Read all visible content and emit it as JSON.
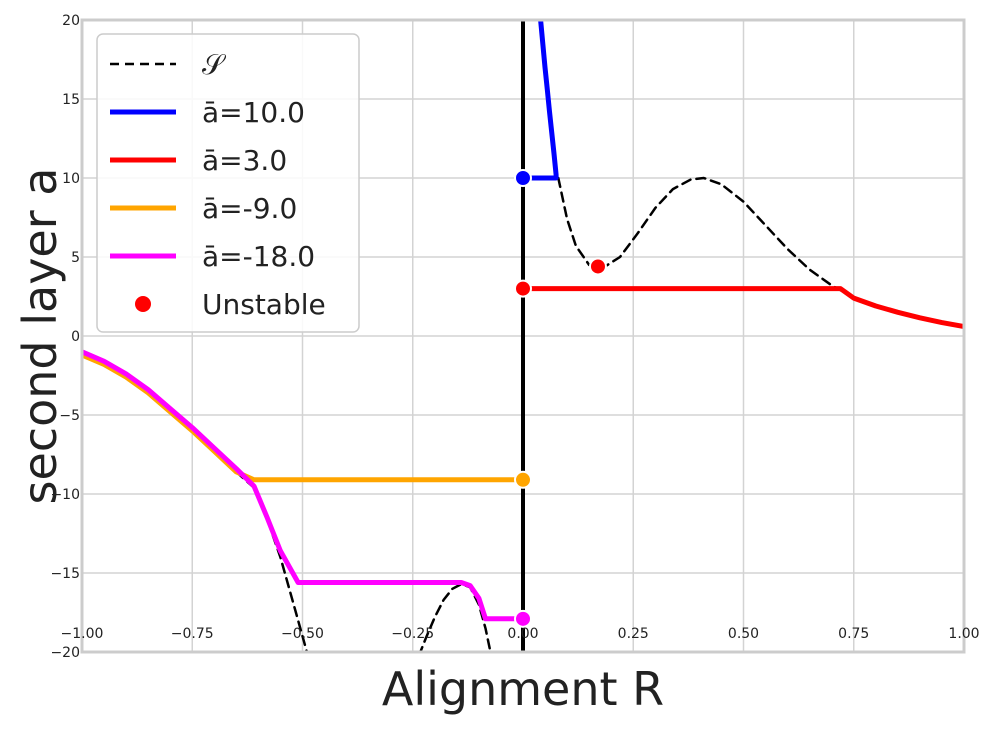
{
  "chart_data": {
    "type": "line",
    "xlabel": "Alignment R",
    "ylabel": "second layer a",
    "xlim": [
      -1.0,
      1.0
    ],
    "ylim": [
      -20,
      20
    ],
    "xticks": [
      -1.0,
      -0.75,
      -0.5,
      -0.25,
      0.0,
      0.25,
      0.5,
      0.75,
      1.0
    ],
    "xtick_labels": [
      "−1.00",
      "−0.75",
      "−0.50",
      "−0.25",
      "0.00",
      "0.25",
      "0.50",
      "0.75",
      "1.00"
    ],
    "yticks": [
      -20,
      -15,
      -10,
      -5,
      0,
      5,
      10,
      15,
      20
    ],
    "ytick_labels": [
      "−20",
      "−15",
      "−10",
      "−5",
      "0",
      "5",
      "10",
      "15",
      "20"
    ],
    "grid": true,
    "legend_position": "top-left",
    "vertical_line": {
      "x": 0.0,
      "color": "#000000"
    },
    "series": [
      {
        "name": "𝒮",
        "style": "dashed",
        "color": "#000000",
        "segments": [
          {
            "x": [
              -1.0,
              -0.95,
              -0.9,
              -0.85,
              -0.8,
              -0.75,
              -0.7,
              -0.65,
              -0.61,
              -0.58,
              -0.55,
              -0.52,
              -0.5,
              -0.48,
              -0.46,
              -0.44,
              -0.43
            ],
            "y": [
              -1.2,
              -1.8,
              -2.6,
              -3.6,
              -4.8,
              -6.0,
              -7.3,
              -8.6,
              -9.6,
              -11.6,
              -14.0,
              -17.0,
              -19.0,
              -21.0,
              -23.0,
              -25.0,
              -26.0
            ]
          },
          {
            "x": [
              -0.26,
              -0.24,
              -0.22,
              -0.2,
              -0.18,
              -0.16,
              -0.14,
              -0.12,
              -0.1,
              -0.085,
              -0.07,
              -0.06
            ],
            "y": [
              -22.0,
              -20.5,
              -19.1,
              -17.8,
              -16.7,
              -16.0,
              -15.7,
              -15.9,
              -17.0,
              -18.5,
              -20.5,
              -22.0
            ]
          },
          {
            "x": [
              0.08,
              0.1,
              0.12,
              0.15,
              0.18,
              0.22,
              0.26,
              0.3,
              0.34,
              0.38,
              0.41,
              0.45,
              0.5,
              0.55,
              0.6,
              0.65,
              0.7,
              0.74
            ],
            "y": [
              10.0,
              7.4,
              5.7,
              4.5,
              4.3,
              5.0,
              6.5,
              8.1,
              9.3,
              9.9,
              10.0,
              9.6,
              8.5,
              7.0,
              5.5,
              4.2,
              3.2,
              2.6
            ]
          }
        ]
      },
      {
        "name": "ā=10.0",
        "style": "solid",
        "color": "#0000ff",
        "segments": [
          {
            "x": [
              0.04,
              0.045,
              0.05,
              0.055,
              0.06,
              0.065,
              0.07,
              0.075,
              0.075,
              0.0
            ],
            "y": [
              20.0,
              18.5,
              17.0,
              15.6,
              14.2,
              12.9,
              11.6,
              10.2,
              10.0,
              10.0
            ]
          }
        ]
      },
      {
        "name": "ā=3.0",
        "style": "solid",
        "color": "#ff0000",
        "segments": [
          {
            "x": [
              0.0,
              0.2,
              0.4,
              0.6,
              0.72,
              0.75,
              0.8,
              0.85,
              0.9,
              0.95,
              1.0
            ],
            "y": [
              3.0,
              3.0,
              3.0,
              3.0,
              3.0,
              2.4,
              1.9,
              1.5,
              1.15,
              0.85,
              0.6
            ]
          }
        ]
      },
      {
        "name": "ā=-9.0",
        "style": "solid",
        "color": "#ffa500",
        "segments": [
          {
            "x": [
              -1.0,
              -0.95,
              -0.9,
              -0.85,
              -0.8,
              -0.75,
              -0.7,
              -0.65,
              -0.61,
              -0.5,
              -0.25,
              0.0
            ],
            "y": [
              -1.2,
              -1.8,
              -2.6,
              -3.6,
              -4.8,
              -6.0,
              -7.3,
              -8.6,
              -9.1,
              -9.1,
              -9.1,
              -9.1
            ]
          }
        ]
      },
      {
        "name": "ā=-18.0",
        "style": "solid",
        "color": "#ff00ff",
        "segments": [
          {
            "x": [
              -1.0,
              -0.95,
              -0.9,
              -0.85,
              -0.8,
              -0.75,
              -0.7,
              -0.65,
              -0.61,
              -0.58,
              -0.55,
              -0.51,
              -0.4,
              -0.3,
              -0.2,
              -0.14,
              -0.12,
              -0.1,
              -0.085,
              -0.08,
              -0.04,
              0.0
            ],
            "y": [
              -1.0,
              -1.6,
              -2.4,
              -3.4,
              -4.6,
              -5.8,
              -7.1,
              -8.4,
              -9.5,
              -11.5,
              -13.6,
              -15.6,
              -15.6,
              -15.6,
              -15.6,
              -15.6,
              -15.8,
              -16.6,
              -17.9,
              -17.9,
              -17.9,
              -17.9
            ]
          }
        ]
      }
    ],
    "points": [
      {
        "x": 0.0,
        "y": 10.0,
        "color": "#0000ff"
      },
      {
        "x": 0.0,
        "y": 3.0,
        "color": "#ff0000"
      },
      {
        "x": 0.0,
        "y": -9.1,
        "color": "#ffa500"
      },
      {
        "x": 0.0,
        "y": -17.9,
        "color": "#ff00ff"
      },
      {
        "x": 0.17,
        "y": 4.4,
        "color": "#ff0000"
      }
    ],
    "legend": [
      {
        "label": "𝒮",
        "kind": "dashed-line",
        "color": "#000000"
      },
      {
        "label": "ā=10.0",
        "kind": "line",
        "color": "#0000ff"
      },
      {
        "label": "ā=3.0",
        "kind": "line",
        "color": "#ff0000"
      },
      {
        "label": "ā=-9.0",
        "kind": "line",
        "color": "#ffa500"
      },
      {
        "label": "ā=-18.0",
        "kind": "line",
        "color": "#ff00ff"
      },
      {
        "label": "Unstable",
        "kind": "marker",
        "color": "#ff0000"
      }
    ]
  }
}
